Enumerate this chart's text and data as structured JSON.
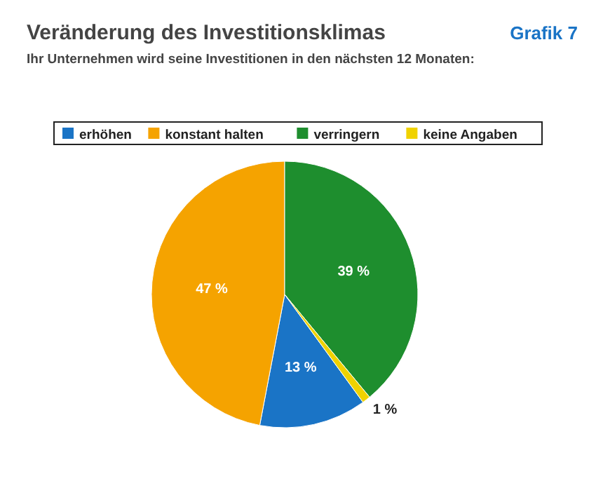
{
  "chart_data": {
    "type": "pie",
    "title": "Veränderung des Investitionsklimas",
    "subtitle": "Ihr Unternehmen wird seine Investitionen in den nächsten 12 Monaten:",
    "annotations": [
      "Grafik 7"
    ],
    "categories": [
      "erhöhen",
      "konstant halten",
      "verringern",
      "keine Angaben"
    ],
    "values": [
      13,
      47,
      39,
      1
    ],
    "colors": [
      "#1a74c6",
      "#f5a300",
      "#1e8e2e",
      "#f0d200"
    ],
    "value_labels": [
      "13 %",
      "47 %",
      "39 %",
      "1 %"
    ],
    "legend": "top"
  }
}
